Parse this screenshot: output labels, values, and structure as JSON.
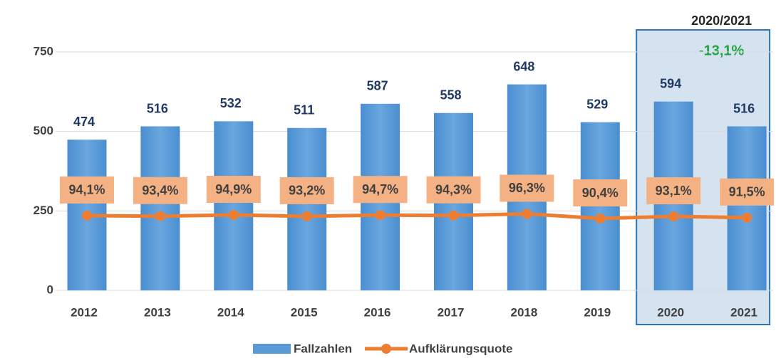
{
  "chart_data": {
    "type": "bar_line",
    "categories": [
      "2012",
      "2013",
      "2014",
      "2015",
      "2016",
      "2017",
      "2018",
      "2019",
      "2020",
      "2021"
    ],
    "series": [
      {
        "name": "Fallzahlen",
        "type": "bar",
        "color": "#5b9bd5",
        "values": [
          474,
          516,
          532,
          511,
          587,
          558,
          648,
          529,
          594,
          516
        ]
      },
      {
        "name": "Aufklärungsquote",
        "type": "line",
        "axis": "y2",
        "color": "#ed7d31",
        "values": [
          94.1,
          93.4,
          94.9,
          93.2,
          94.7,
          94.3,
          96.3,
          90.4,
          93.1,
          91.5
        ],
        "value_labels": [
          "94,1%",
          "93,4%",
          "94,9%",
          "93,2%",
          "94,7%",
          "94,3%",
          "96,3%",
          "90,4%",
          "93,1%",
          "91,5%"
        ]
      }
    ],
    "ylim": [
      0,
      750
    ],
    "yticks": [
      0,
      250,
      500,
      750
    ],
    "y2lim": [
      0,
      300
    ],
    "grid": true,
    "legend": "bottom",
    "annotation": {
      "title": "2020/2021",
      "text": "-13,1%",
      "from": "2020",
      "to": "2021"
    }
  }
}
